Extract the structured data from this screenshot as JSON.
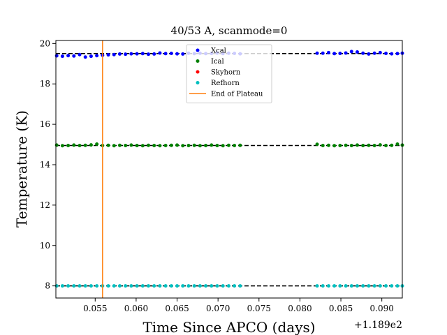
{
  "chart_data": {
    "type": "scatter",
    "title": "40/53 A, scanmode=0",
    "xlabel": "Time Since APCO (days)",
    "ylabel": "Temperature (K)",
    "x_offset_label": "+1.189e2",
    "xlim": [
      0.0502,
      0.0925
    ],
    "ylim": [
      7.4,
      20.15
    ],
    "xticks": [
      0.055,
      0.06,
      0.065,
      0.07,
      0.075,
      0.08,
      0.085,
      0.09
    ],
    "xtick_labels": [
      "0.055",
      "0.060",
      "0.065",
      "0.070",
      "0.075",
      "0.080",
      "0.085",
      "0.090"
    ],
    "yticks": [
      8,
      10,
      12,
      14,
      16,
      18,
      20
    ],
    "ytick_labels": [
      "8",
      "10",
      "12",
      "14",
      "16",
      "18",
      "20"
    ],
    "grid": false,
    "legend_position": "top-center",
    "series": [
      {
        "name": "Xcal",
        "color": "#0000ff",
        "marker": "point",
        "x": [
          0.0503,
          0.051,
          0.0517,
          0.0524,
          0.0531,
          0.0538,
          0.0545,
          0.0552,
          0.0559,
          0.0566,
          0.0573,
          0.058,
          0.0587,
          0.0594,
          0.0601,
          0.0608,
          0.0615,
          0.0622,
          0.0629,
          0.0636,
          0.0643,
          0.065,
          0.0657,
          0.0664,
          0.0671,
          0.0678,
          0.0685,
          0.0692,
          0.0699,
          0.0706,
          0.0713,
          0.072,
          0.0727,
          0.0821,
          0.0828,
          0.0835,
          0.0842,
          0.0849,
          0.0856,
          0.0863,
          0.087,
          0.0877,
          0.0884,
          0.0891,
          0.0898,
          0.0905,
          0.0912,
          0.0919,
          0.0925
        ],
        "y": [
          19.39,
          19.37,
          19.4,
          19.38,
          19.45,
          19.33,
          19.37,
          19.4,
          19.42,
          19.44,
          19.45,
          19.48,
          19.47,
          19.49,
          19.49,
          19.5,
          19.47,
          19.48,
          19.53,
          19.5,
          19.51,
          19.49,
          19.48,
          19.52,
          19.5,
          19.52,
          19.5,
          19.51,
          19.53,
          19.5,
          19.52,
          19.51,
          19.49,
          19.52,
          19.52,
          19.55,
          19.5,
          19.51,
          19.53,
          19.6,
          19.58,
          19.52,
          19.48,
          19.52,
          19.55,
          19.51,
          19.49,
          19.5,
          19.52
        ]
      },
      {
        "name": "Ical",
        "color": "#008000",
        "marker": "point",
        "x": [
          0.0503,
          0.051,
          0.0517,
          0.0524,
          0.0531,
          0.0538,
          0.0545,
          0.0552,
          0.0559,
          0.0566,
          0.0573,
          0.058,
          0.0587,
          0.0594,
          0.0601,
          0.0608,
          0.0615,
          0.0622,
          0.0629,
          0.0636,
          0.0643,
          0.065,
          0.0657,
          0.0664,
          0.0671,
          0.0678,
          0.0685,
          0.0692,
          0.0699,
          0.0706,
          0.0713,
          0.072,
          0.0727,
          0.0821,
          0.0828,
          0.0835,
          0.0842,
          0.0849,
          0.0856,
          0.0863,
          0.087,
          0.0877,
          0.0884,
          0.0891,
          0.0898,
          0.0905,
          0.0912,
          0.0919,
          0.0925
        ],
        "y": [
          14.97,
          14.94,
          14.95,
          14.97,
          14.95,
          14.96,
          14.98,
          15.02,
          14.95,
          14.96,
          14.94,
          14.96,
          14.95,
          14.97,
          14.95,
          14.94,
          14.96,
          14.95,
          14.94,
          14.95,
          14.96,
          14.97,
          14.94,
          14.95,
          14.96,
          14.94,
          14.95,
          14.97,
          14.95,
          14.94,
          14.96,
          14.95,
          14.96,
          15.01,
          14.95,
          14.96,
          14.94,
          14.95,
          14.96,
          14.95,
          14.97,
          14.95,
          14.96,
          14.95,
          14.98,
          14.95,
          14.96,
          15.02,
          14.97
        ]
      },
      {
        "name": "Skyhorn",
        "color": "#ff0000",
        "marker": "point",
        "x": [],
        "y": []
      },
      {
        "name": "Refhorn",
        "color": "#00bfbf",
        "marker": "point",
        "x": [
          0.0503,
          0.051,
          0.0517,
          0.0524,
          0.0531,
          0.0538,
          0.0545,
          0.0552,
          0.0559,
          0.0566,
          0.0573,
          0.058,
          0.0587,
          0.0594,
          0.0601,
          0.0608,
          0.0615,
          0.0622,
          0.0629,
          0.0636,
          0.0643,
          0.065,
          0.0657,
          0.0664,
          0.0671,
          0.0678,
          0.0685,
          0.0692,
          0.0699,
          0.0706,
          0.0713,
          0.072,
          0.0727,
          0.0821,
          0.0828,
          0.0835,
          0.0842,
          0.0849,
          0.0856,
          0.0863,
          0.087,
          0.0877,
          0.0884,
          0.0891,
          0.0898,
          0.0905,
          0.0912,
          0.0919,
          0.0925
        ],
        "y": [
          8.0,
          8.0,
          8.0,
          8.0,
          8.0,
          8.0,
          8.0,
          8.0,
          8.0,
          8.0,
          8.0,
          8.0,
          8.0,
          8.0,
          8.0,
          8.0,
          8.0,
          8.0,
          8.0,
          8.0,
          8.0,
          8.0,
          8.0,
          8.0,
          8.0,
          8.0,
          8.0,
          8.0,
          8.0,
          8.0,
          8.0,
          8.0,
          8.0,
          8.0,
          8.0,
          8.0,
          8.0,
          8.0,
          8.0,
          8.0,
          8.0,
          8.0,
          8.0,
          8.0,
          8.0,
          8.0,
          8.0,
          8.0,
          8.0
        ]
      }
    ],
    "reference_lines": [
      {
        "orientation": "horizontal",
        "y": 19.5,
        "style": "dashed",
        "color": "#000000"
      },
      {
        "orientation": "horizontal",
        "y": 14.95,
        "style": "dashed",
        "color": "#000000"
      },
      {
        "orientation": "horizontal",
        "y": 8.0,
        "style": "dashed",
        "color": "#000000"
      }
    ],
    "vertical_lines": [
      {
        "name": "End of Plateau",
        "x": 0.0559,
        "color": "#ff7f0e"
      }
    ],
    "legend": [
      {
        "label": "Xcal",
        "kind": "point",
        "color": "#0000ff"
      },
      {
        "label": "Ical",
        "kind": "point",
        "color": "#008000"
      },
      {
        "label": "Skyhorn",
        "kind": "point",
        "color": "#ff0000"
      },
      {
        "label": "Refhorn",
        "kind": "point",
        "color": "#00bfbf"
      },
      {
        "label": "End of Plateau",
        "kind": "line",
        "color": "#ff7f0e"
      }
    ]
  }
}
